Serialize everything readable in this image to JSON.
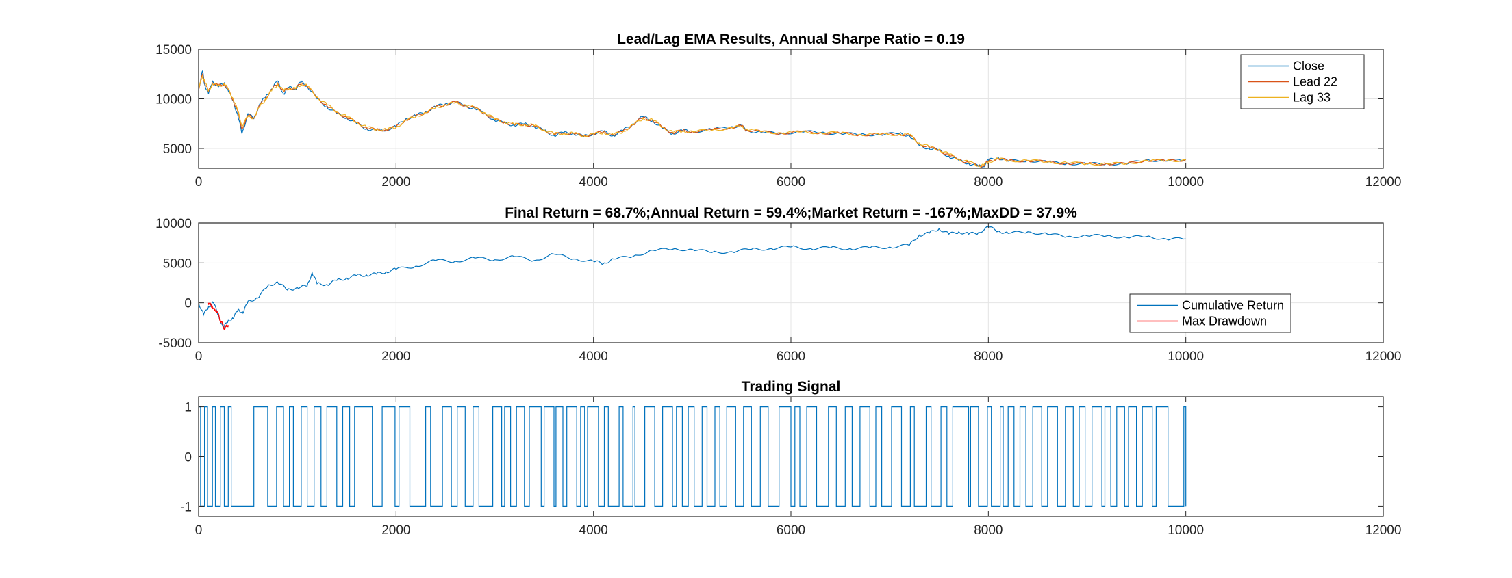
{
  "chart_data": [
    {
      "type": "line",
      "title": "Lead/Lag EMA Results, Annual Sharpe Ratio = 0.19",
      "xlabel": "",
      "ylabel": "",
      "xlim": [
        0,
        12000
      ],
      "ylim": [
        3000,
        15000
      ],
      "xticks": [
        0,
        2000,
        4000,
        6000,
        8000,
        10000,
        12000
      ],
      "yticks": [
        5000,
        10000,
        15000
      ],
      "grid": true,
      "legend_position": "top-right",
      "series": [
        {
          "name": "Close",
          "color": "#0072BD",
          "x": [
            0,
            40,
            60,
            100,
            140,
            200,
            260,
            300,
            350,
            400,
            440,
            500,
            560,
            620,
            680,
            740,
            800,
            860,
            920,
            980,
            1040,
            1100,
            1200,
            1300,
            1400,
            1500,
            1600,
            1700,
            1800,
            1900,
            2000,
            2100,
            2200,
            2300,
            2400,
            2500,
            2600,
            2700,
            2800,
            2900,
            3000,
            3100,
            3200,
            3300,
            3400,
            3500,
            3600,
            3700,
            3800,
            3900,
            4000,
            4100,
            4200,
            4300,
            4400,
            4500,
            4600,
            4700,
            4800,
            4900,
            5000,
            5200,
            5400,
            5500,
            5550,
            5700,
            5900,
            6100,
            6300,
            6500,
            6700,
            6900,
            7100,
            7200,
            7300,
            7400,
            7500,
            7600,
            7700,
            7800,
            7900,
            7950,
            8000,
            8100,
            8200,
            8400,
            8600,
            8800,
            9000,
            9200,
            9400,
            9600,
            9800,
            10000
          ],
          "values": [
            11000,
            12800,
            11500,
            10500,
            11800,
            11200,
            11600,
            10800,
            9800,
            8200,
            6500,
            8500,
            8000,
            9500,
            10200,
            11000,
            11800,
            10500,
            11200,
            11000,
            11700,
            11300,
            10000,
            9200,
            8500,
            8100,
            7500,
            7000,
            6800,
            6900,
            7200,
            8000,
            8300,
            8700,
            9200,
            9500,
            9700,
            9300,
            9000,
            8500,
            7800,
            7600,
            7300,
            7500,
            7200,
            6800,
            6300,
            6600,
            6500,
            6200,
            6500,
            6700,
            6300,
            6800,
            7500,
            8200,
            7800,
            7000,
            6500,
            6800,
            6700,
            6900,
            7200,
            7300,
            6800,
            6600,
            6500,
            6700,
            6600,
            6500,
            6400,
            6400,
            6500,
            6300,
            5300,
            5000,
            4800,
            4200,
            3800,
            3500,
            3200,
            3200,
            3800,
            4100,
            3700,
            3800,
            3600,
            3500,
            3400,
            3500,
            3400,
            3900,
            3700,
            3900
          ]
        },
        {
          "name": "Lead 22",
          "color": "#D95319",
          "x": [
            0,
            40,
            60,
            100,
            140,
            200,
            260,
            300,
            350,
            400,
            440,
            500,
            560,
            620,
            680,
            740,
            800,
            860,
            920,
            980,
            1040,
            1100,
            1200,
            1300,
            1400,
            1500,
            1600,
            1700,
            1800,
            1900,
            2000,
            2100,
            2200,
            2300,
            2400,
            2500,
            2600,
            2700,
            2800,
            2900,
            3000,
            3100,
            3200,
            3300,
            3400,
            3500,
            3600,
            3700,
            3800,
            3900,
            4000,
            4100,
            4200,
            4300,
            4400,
            4500,
            4600,
            4700,
            4800,
            4900,
            5000,
            5200,
            5400,
            5500,
            5550,
            5700,
            5900,
            6100,
            6300,
            6500,
            6700,
            6900,
            7100,
            7200,
            7300,
            7400,
            7500,
            7600,
            7700,
            7800,
            7900,
            7950,
            8000,
            8100,
            8200,
            8400,
            8600,
            8800,
            9000,
            9200,
            9400,
            9600,
            9800,
            10000
          ],
          "values": [
            11000,
            12500,
            11700,
            10700,
            11600,
            11300,
            11500,
            10900,
            9900,
            8500,
            7000,
            8300,
            8100,
            9300,
            10100,
            10900,
            11600,
            10700,
            11100,
            11000,
            11600,
            11300,
            10100,
            9300,
            8600,
            8150,
            7600,
            7100,
            6850,
            6900,
            7150,
            7900,
            8250,
            8650,
            9150,
            9450,
            9650,
            9350,
            9050,
            8550,
            7900,
            7650,
            7350,
            7450,
            7250,
            6850,
            6400,
            6550,
            6500,
            6250,
            6450,
            6650,
            6350,
            6750,
            7400,
            8100,
            7850,
            7100,
            6600,
            6750,
            6700,
            6850,
            7150,
            7250,
            6900,
            6650,
            6550,
            6650,
            6600,
            6500,
            6400,
            6400,
            6450,
            6350,
            5450,
            5100,
            4850,
            4300,
            3900,
            3550,
            3250,
            3250,
            3700,
            4000,
            3750,
            3780,
            3620,
            3520,
            3420,
            3480,
            3420,
            3850,
            3720,
            3870
          ]
        },
        {
          "name": "Lag 33",
          "color": "#EDB120",
          "x": [
            0,
            40,
            60,
            100,
            140,
            200,
            260,
            300,
            350,
            400,
            440,
            500,
            560,
            620,
            680,
            740,
            800,
            860,
            920,
            980,
            1040,
            1100,
            1200,
            1300,
            1400,
            1500,
            1600,
            1700,
            1800,
            1900,
            2000,
            2100,
            2200,
            2300,
            2400,
            2500,
            2600,
            2700,
            2800,
            2900,
            3000,
            3100,
            3200,
            3300,
            3400,
            3500,
            3600,
            3700,
            3800,
            3900,
            4000,
            4100,
            4200,
            4300,
            4400,
            4500,
            4600,
            4700,
            4800,
            4900,
            5000,
            5200,
            5400,
            5500,
            5550,
            5700,
            5900,
            6100,
            6300,
            6500,
            6700,
            6900,
            7100,
            7200,
            7300,
            7400,
            7500,
            7600,
            7700,
            7800,
            7900,
            7950,
            8000,
            8100,
            8200,
            8400,
            8600,
            8800,
            9000,
            9200,
            9400,
            9600,
            9800,
            10000
          ],
          "values": [
            11000,
            12300,
            11800,
            10800,
            11500,
            11300,
            11500,
            11000,
            10000,
            8700,
            7300,
            8200,
            8100,
            9200,
            10000,
            10800,
            11500,
            10800,
            11100,
            11000,
            11500,
            11300,
            10200,
            9400,
            8700,
            8200,
            7650,
            7150,
            6900,
            6920,
            7100,
            7850,
            8200,
            8600,
            9100,
            9400,
            9600,
            9400,
            9100,
            8600,
            7950,
            7700,
            7400,
            7450,
            7280,
            6900,
            6450,
            6550,
            6500,
            6300,
            6420,
            6620,
            6380,
            6700,
            7350,
            8000,
            7880,
            7150,
            6650,
            6720,
            6700,
            6820,
            7100,
            7220,
            6950,
            6680,
            6580,
            6640,
            6600,
            6520,
            6420,
            6400,
            6440,
            6380,
            5550,
            5150,
            4900,
            4400,
            3950,
            3600,
            3300,
            3280,
            3650,
            3950,
            3780,
            3770,
            3640,
            3540,
            3440,
            3470,
            3440,
            3800,
            3740,
            3850
          ]
        }
      ]
    },
    {
      "type": "line",
      "title": "Final Return = 68.7%;Annual Return = 59.4%;Market Return = -167%;MaxDD = 37.9%",
      "xlabel": "",
      "ylabel": "",
      "xlim": [
        0,
        12000
      ],
      "ylim": [
        -5000,
        10000
      ],
      "xticks": [
        0,
        2000,
        4000,
        6000,
        8000,
        10000,
        12000
      ],
      "yticks": [
        -5000,
        0,
        5000,
        10000
      ],
      "grid": true,
      "legend_position": "bottom-right",
      "series": [
        {
          "name": "Cumulative Return",
          "color": "#0072BD",
          "x": [
            0,
            50,
            100,
            150,
            200,
            250,
            300,
            350,
            400,
            450,
            500,
            600,
            700,
            800,
            900,
            1000,
            1100,
            1150,
            1200,
            1300,
            1400,
            1500,
            1600,
            1700,
            1800,
            1900,
            2000,
            2200,
            2400,
            2600,
            2800,
            3000,
            3200,
            3400,
            3600,
            3800,
            4000,
            4100,
            4200,
            4400,
            4600,
            4800,
            5000,
            5200,
            5400,
            5600,
            5800,
            6000,
            6200,
            6400,
            6600,
            6800,
            7000,
            7200,
            7300,
            7400,
            7500,
            7600,
            7700,
            7800,
            7900,
            8000,
            8100,
            8200,
            8400,
            8600,
            8800,
            9000,
            9200,
            9400,
            9600,
            9800,
            10000
          ],
          "values": [
            0,
            -1500,
            -500,
            0,
            -1500,
            -3200,
            -2200,
            -2000,
            -800,
            -1300,
            200,
            600,
            2100,
            2600,
            1600,
            1900,
            2100,
            3800,
            2400,
            2300,
            2800,
            3100,
            3400,
            3500,
            3600,
            3900,
            4200,
            4600,
            5300,
            5200,
            5600,
            5400,
            5800,
            5300,
            6100,
            5500,
            5200,
            4900,
            5500,
            5800,
            6600,
            6700,
            6700,
            6300,
            6400,
            6700,
            6800,
            7000,
            6800,
            6900,
            6800,
            6900,
            7000,
            7200,
            8500,
            8700,
            9300,
            8600,
            8900,
            8600,
            8800,
            9500,
            9000,
            8700,
            8900,
            8600,
            8300,
            8400,
            8400,
            8200,
            8300,
            8000,
            8000
          ]
        },
        {
          "name": "Max Drawdown",
          "color": "#FF0000",
          "x": [
            100,
            120,
            140,
            160,
            180,
            200,
            220,
            240,
            260,
            280,
            300
          ],
          "values": [
            0,
            -300,
            -500,
            -1000,
            -900,
            -1500,
            -2200,
            -2600,
            -3200,
            -3000,
            -2800
          ]
        }
      ]
    },
    {
      "type": "line",
      "title": "Trading Signal",
      "xlabel": "",
      "ylabel": "",
      "xlim": [
        0,
        12000
      ],
      "ylim": [
        -1.2,
        1.2
      ],
      "xticks": [
        0,
        2000,
        4000,
        6000,
        8000,
        10000,
        12000
      ],
      "yticks": [
        -1,
        0,
        1
      ],
      "grid": false,
      "series": [
        {
          "name": "",
          "color": "#0072BD",
          "switches": [
            0,
            20,
            60,
            90,
            140,
            170,
            220,
            260,
            300,
            330,
            560,
            700,
            790,
            860,
            920,
            960,
            1040,
            1100,
            1170,
            1240,
            1300,
            1400,
            1460,
            1530,
            1580,
            1760,
            1860,
            1990,
            2030,
            2140,
            2300,
            2350,
            2470,
            2560,
            2620,
            2700,
            2780,
            2840,
            2980,
            3070,
            3100,
            3160,
            3220,
            3300,
            3350,
            3470,
            3500,
            3600,
            3620,
            3690,
            3730,
            3830,
            3870,
            3910,
            3940,
            4050,
            4110,
            4150,
            4260,
            4300,
            4400,
            4420,
            4520,
            4620,
            4700,
            4800,
            4840,
            4900,
            4960,
            5020,
            5100,
            5150,
            5230,
            5280,
            5350,
            5440,
            5520,
            5600,
            5690,
            5770,
            5880,
            6000,
            6040,
            6090,
            6160,
            6260,
            6380,
            6460,
            6550,
            6620,
            6700,
            6800,
            6860,
            6920,
            7020,
            7120,
            7210,
            7250,
            7370,
            7420,
            7520,
            7580,
            7640,
            7800,
            7820,
            7900,
            7990,
            8030,
            8120,
            8150,
            8200,
            8260,
            8320,
            8380,
            8450,
            8540,
            8600,
            8700,
            8780,
            8860,
            8920,
            8980,
            9050,
            9150,
            9180,
            9240,
            9300,
            9380,
            9420,
            9500,
            9560,
            9660,
            9700,
            9820,
            9980,
            10000
          ],
          "start_value": 1,
          "end_x": 10000
        }
      ]
    }
  ]
}
